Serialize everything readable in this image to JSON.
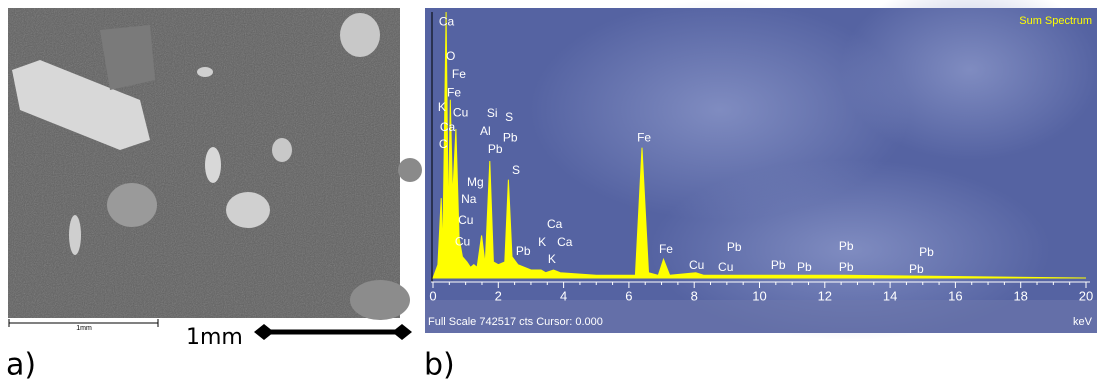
{
  "figure": {
    "panel_a": "a)",
    "panel_b": "b)",
    "scale_bar_label": "1mm",
    "scale_label": "1mm"
  },
  "chart_data": {
    "type": "line",
    "title": "Sum Spectrum",
    "x_label": "keV",
    "footer": "Full Scale 742517 cts Cursor: 0.000",
    "color": "#ffff00",
    "xlim": [
      0,
      20.3
    ],
    "xticks": [
      0,
      2,
      4,
      6,
      8,
      10,
      12,
      14,
      16,
      18,
      20
    ],
    "ylim": [
      0,
      100
    ],
    "x": [
      0,
      0.15,
      0.25,
      0.3,
      0.4,
      0.47,
      0.53,
      0.6,
      0.7,
      0.8,
      0.9,
      1.04,
      1.15,
      1.25,
      1.35,
      1.49,
      1.6,
      1.74,
      1.85,
      2.0,
      2.2,
      2.31,
      2.42,
      2.6,
      3.0,
      3.31,
      3.45,
      3.69,
      3.9,
      5,
      6.2,
      6.4,
      6.6,
      6.9,
      7.06,
      7.25,
      8.05,
      8.3,
      10.55,
      12.6,
      20
    ],
    "values": [
      0,
      5,
      30,
      10,
      100,
      20,
      67,
      30,
      56,
      15,
      8,
      6,
      4,
      5,
      4,
      16,
      5,
      44,
      6,
      5,
      6,
      37,
      8,
      5,
      3,
      3,
      2,
      3,
      2,
      1,
      1,
      49,
      2,
      1,
      7,
      1,
      2,
      1,
      1,
      1,
      0
    ],
    "annotations": [
      {
        "text": "Ca",
        "x": 0.18,
        "y": 96.2
      },
      {
        "text": "O",
        "x": 0.4,
        "y": 83.1
      },
      {
        "text": "Fe",
        "x": 0.58,
        "y": 76.3
      },
      {
        "text": "Fe",
        "x": 0.43,
        "y": 69.5
      },
      {
        "text": "K",
        "x": 0.15,
        "y": 63.9
      },
      {
        "text": "Cu",
        "x": 0.61,
        "y": 62.0
      },
      {
        "text": "Ca",
        "x": 0.21,
        "y": 56.4
      },
      {
        "text": "C",
        "x": 0.18,
        "y": 50.0
      },
      {
        "text": "Si",
        "x": 1.65,
        "y": 61.7
      },
      {
        "text": "S",
        "x": 2.21,
        "y": 60.2
      },
      {
        "text": "Al",
        "x": 1.44,
        "y": 54.9
      },
      {
        "text": "Pb",
        "x": 2.14,
        "y": 52.6
      },
      {
        "text": "Pb",
        "x": 1.68,
        "y": 48.1
      },
      {
        "text": "Mg",
        "x": 1.04,
        "y": 35.7
      },
      {
        "text": "S",
        "x": 2.42,
        "y": 40.2
      },
      {
        "text": "Na",
        "x": 0.86,
        "y": 29.3
      },
      {
        "text": "Cu",
        "x": 0.77,
        "y": 21.4
      },
      {
        "text": "Cu",
        "x": 0.67,
        "y": 13.5
      },
      {
        "text": "Pb",
        "x": 2.54,
        "y": 9.8
      },
      {
        "text": "Fe",
        "x": 6.25,
        "y": 52.6
      },
      {
        "text": "Ca",
        "x": 3.49,
        "y": 19.9
      },
      {
        "text": "K",
        "x": 3.22,
        "y": 13.2
      },
      {
        "text": "Ca",
        "x": 3.8,
        "y": 13.2
      },
      {
        "text": "K",
        "x": 3.52,
        "y": 6.8
      },
      {
        "text": "Fe",
        "x": 6.92,
        "y": 10.5
      },
      {
        "text": "Pb",
        "x": 9.0,
        "y": 11.3
      },
      {
        "text": "Cu",
        "x": 7.84,
        "y": 4.5
      },
      {
        "text": "Cu",
        "x": 8.73,
        "y": 3.8
      },
      {
        "text": "Pb",
        "x": 10.35,
        "y": 4.5
      },
      {
        "text": "Pb",
        "x": 11.15,
        "y": 3.8
      },
      {
        "text": "Pb",
        "x": 12.43,
        "y": 11.7
      },
      {
        "text": "Pb",
        "x": 12.43,
        "y": 3.8
      },
      {
        "text": "Pb",
        "x": 14.89,
        "y": 9.4
      },
      {
        "text": "Pb",
        "x": 14.58,
        "y": 3.0
      }
    ]
  }
}
